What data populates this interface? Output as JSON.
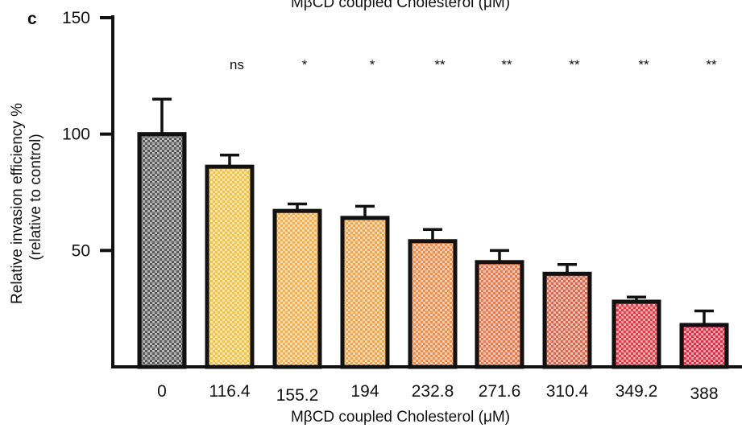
{
  "panel_label": "c",
  "chart_data": {
    "type": "bar",
    "title": "MβCD coupled Cholesterol (μM)",
    "xlabel": "MβCD coupled Cholesterol (μM)",
    "ylabel": "Relative invasion efficiency %",
    "ylabel2": "(relative to control)",
    "ylim": [
      0,
      150
    ],
    "y_ticks": [
      "50",
      "100",
      "150"
    ],
    "y_tick_values": [
      50,
      100,
      150
    ],
    "categories": [
      "0",
      "116.4",
      "155.2",
      "194",
      "232.8",
      "271.6",
      "310.4",
      "349.2",
      "388"
    ],
    "values": [
      100,
      86,
      67,
      64,
      54,
      45,
      40,
      28,
      18
    ],
    "errors": [
      15,
      5,
      3,
      5,
      5,
      5,
      4,
      2,
      6
    ],
    "significance": [
      "",
      "ns",
      "*",
      "*",
      "**",
      "**",
      "**",
      "**",
      "**"
    ],
    "colors": [
      "#5a5a5a",
      "#efc24a",
      "#f0b04e",
      "#eea64e",
      "#ec8e4e",
      "#e6794e",
      "#d8684e",
      "#e03d48",
      "#dd2f46"
    ],
    "grid": false,
    "legend": "none"
  }
}
